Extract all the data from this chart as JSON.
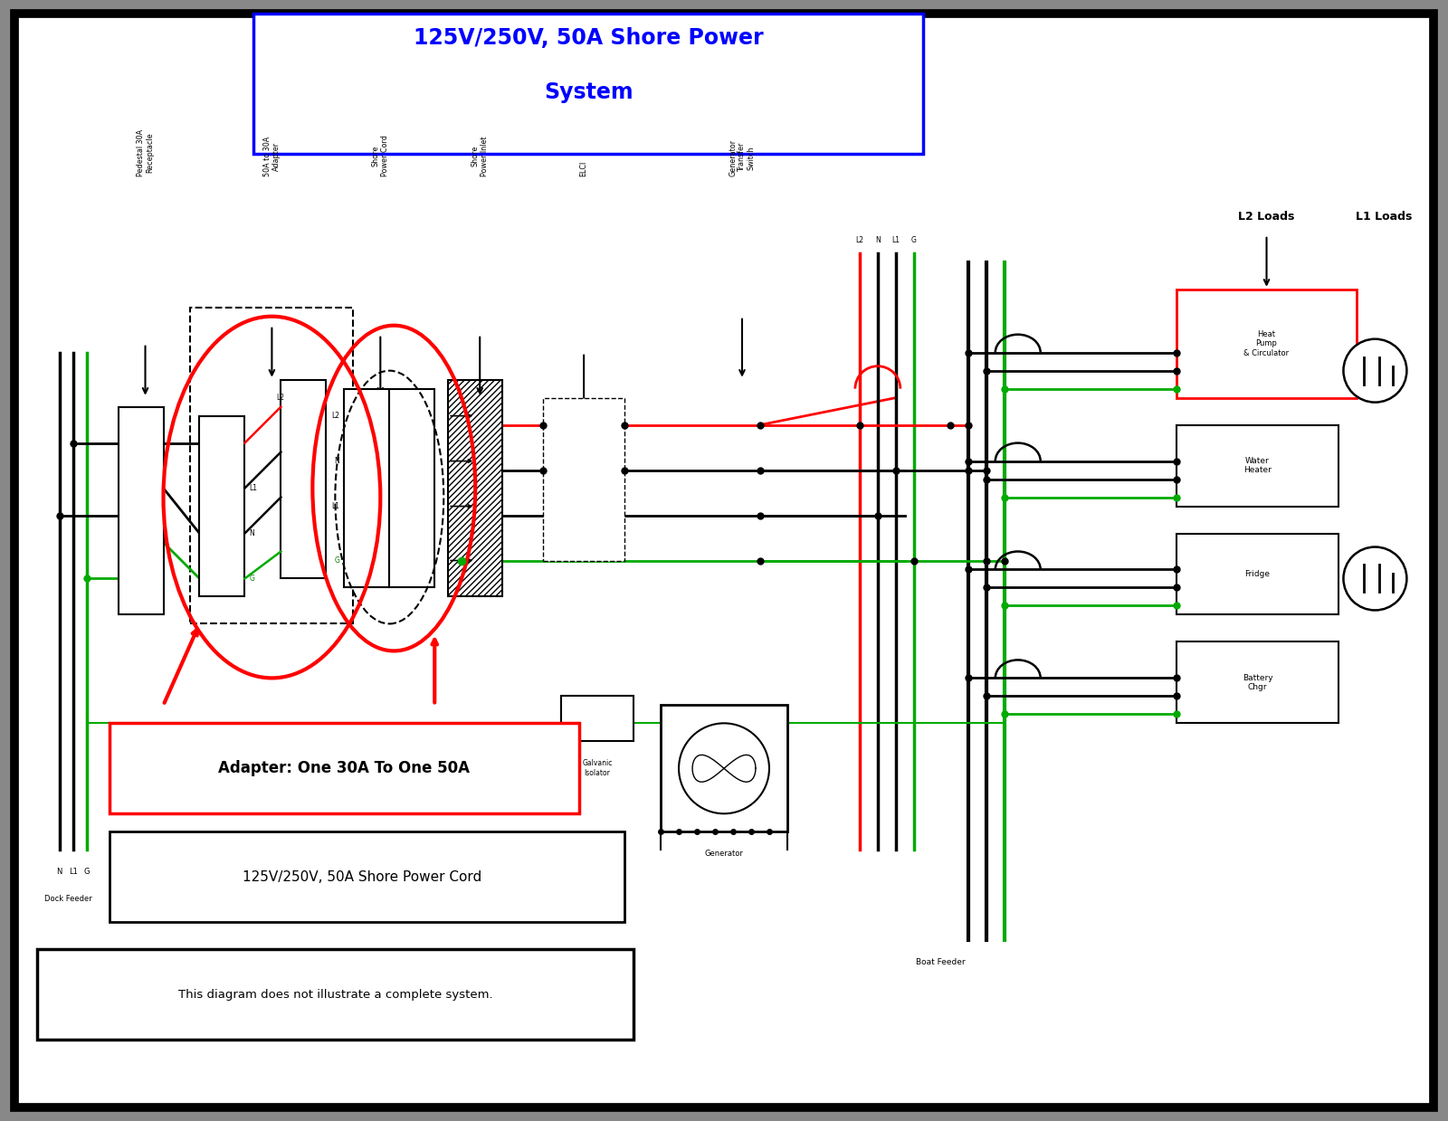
{
  "title_line1": "125V/250V, 50A Shore Power",
  "title_line2": "System",
  "title_color": "#0000FF",
  "bg_color": "white",
  "border_color": "black",
  "disclaimer": "This diagram does not illustrate a complete system.",
  "adapter_label": "Adapter: One 30A To One 50A",
  "cord_label": "125V/250V, 50A Shore Power Cord",
  "col_labels": {
    "pedestal": "Pedestal 30A\nReceptacle",
    "adapter": "50A to 30A\nAdapter",
    "shore_cord": "Shore\nPower Cord",
    "shore_inlet": "Shore\nPower Inlet",
    "elci": "ELCI",
    "gen_switch": "Generator\nTransfer\nSwitch"
  },
  "load_labels": {
    "l2_loads": "L2 Loads",
    "l1_loads": "L1 Loads",
    "heat_pump": "Heat\nPump\n& Circulator",
    "water_heater": "Water\nHeater",
    "fridge": "Fridge",
    "battery": "Battery\nChgr",
    "generator": "Generator",
    "galvanic": "Galvanic\nIsolator",
    "boat_feeder": "Boat Feeder",
    "dock_feeder": "Dock Feeder"
  },
  "wire_colors": {
    "red": "#FF0000",
    "black": "#000000",
    "green": "#00AA00",
    "white_wire": "#888888"
  }
}
